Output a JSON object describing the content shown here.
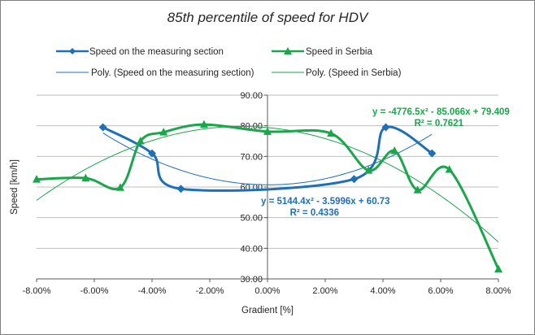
{
  "chart_data": {
    "type": "line",
    "title": "85th percentile of speed for HDV",
    "xlabel": "Gradient [%]",
    "ylabel": "Speed [km/h]",
    "xlim": [
      -0.08,
      0.08
    ],
    "ylim": [
      30,
      90
    ],
    "x_ticks": [
      "-8.00%",
      "-6.00%",
      "-4.00%",
      "-2.00%",
      "0.00%",
      "2.00%",
      "4.00%",
      "6.00%",
      "8.00%"
    ],
    "y_ticks": [
      "30.00",
      "40.00",
      "50.00",
      "60.00",
      "70.00",
      "80.00",
      "90.00"
    ],
    "grid": "horizontal",
    "legend_position": "top",
    "series": [
      {
        "name": "Speed on the measuring section",
        "color": "#1f6fb6",
        "marker": "diamond",
        "x": [
          -0.057,
          -0.04,
          -0.03,
          0.03,
          0.041,
          0.057
        ],
        "y": [
          79.5,
          71.0,
          59.4,
          62.6,
          79.5,
          71.0
        ]
      },
      {
        "name": "Speed in Serbia",
        "color": "#1aa64b",
        "marker": "triangle",
        "x": [
          -0.08,
          -0.063,
          -0.051,
          -0.044,
          -0.036,
          -0.022,
          0.0,
          0.022,
          0.035,
          0.044,
          0.052,
          0.063,
          0.08
        ],
        "y": [
          62.5,
          62.9,
          59.8,
          75.0,
          77.9,
          80.4,
          78.1,
          77.5,
          65.4,
          71.8,
          59.0,
          65.7,
          33.2
        ]
      }
    ],
    "trendlines": [
      {
        "name": "Poly. (Speed on the measuring section)",
        "color": "#1f6fb6",
        "coefficients": [
          5144.4,
          -3.5996,
          60.73
        ],
        "x_range": [
          -0.057,
          0.057
        ],
        "equation": "y = 5144.4x² - 3.5996x + 60.73",
        "r2": "R² = 0.4336"
      },
      {
        "name": "Poly. (Speed in Serbia)",
        "color": "#1aa64b",
        "coefficients": [
          -4776.5,
          -85.066,
          79.409
        ],
        "x_range": [
          -0.08,
          0.08
        ],
        "equation": "y = -4776.5x² - 85.066x + 79.409",
        "r2": "R² = 0.7621"
      }
    ]
  }
}
